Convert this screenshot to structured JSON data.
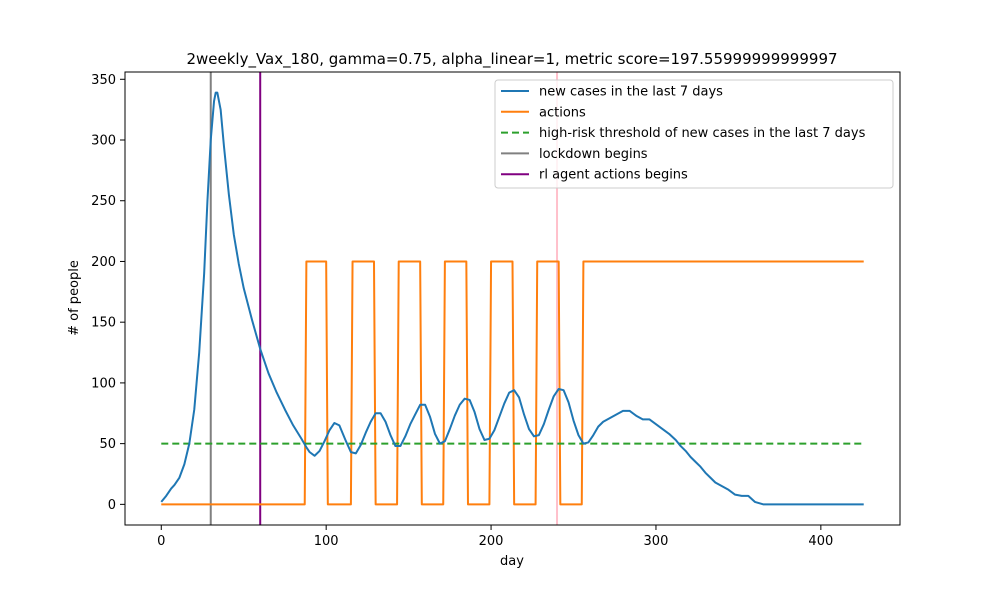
{
  "chart_data": {
    "type": "line",
    "title": "2weekly_Vax_180, gamma=0.75, alpha_linear=1, metric score=197.55999999999997",
    "xlabel": "day",
    "ylabel": "# of people",
    "xlim": [
      -22,
      448
    ],
    "ylim": [
      -17,
      356
    ],
    "xticks": [
      0,
      100,
      200,
      300,
      400
    ],
    "yticks": [
      0,
      50,
      100,
      150,
      200,
      250,
      300,
      350
    ],
    "grid": false,
    "legend_position": "upper-right",
    "series": [
      {
        "name": "new cases in the last 7 days",
        "color": "#1f77b4",
        "style": "solid",
        "x": [
          0,
          3,
          6,
          8,
          11,
          14,
          17,
          20,
          23,
          26,
          28,
          30,
          32,
          33,
          34,
          36,
          38,
          41,
          44,
          47,
          50,
          55,
          60,
          65,
          70,
          75,
          80,
          85,
          88,
          90,
          93,
          96,
          99,
          102,
          105,
          108,
          112,
          115,
          118,
          121,
          124,
          127,
          130,
          133,
          136,
          139,
          142,
          145,
          148,
          151,
          154,
          157,
          160,
          163,
          166,
          169,
          172,
          175,
          178,
          181,
          184,
          187,
          190,
          193,
          196,
          199,
          202,
          205,
          208,
          211,
          214,
          217,
          220,
          223,
          226,
          229,
          232,
          235,
          238,
          241,
          244,
          247,
          250,
          253,
          256,
          259,
          262,
          265,
          268,
          272,
          276,
          280,
          284,
          288,
          292,
          296,
          300,
          304,
          308,
          312,
          315,
          318,
          321,
          324,
          327,
          330,
          333,
          336,
          340,
          344,
          348,
          352,
          356,
          360,
          365,
          370,
          380,
          390,
          400,
          410,
          420,
          426
        ],
        "values": [
          2,
          7,
          13,
          16,
          22,
          33,
          50,
          78,
          125,
          190,
          250,
          300,
          332,
          339,
          339,
          325,
          295,
          255,
          222,
          198,
          178,
          152,
          128,
          108,
          92,
          78,
          65,
          54,
          47,
          43,
          40,
          44,
          52,
          61,
          67,
          65,
          52,
          43,
          42,
          49,
          59,
          68,
          75,
          75,
          68,
          57,
          48,
          48,
          56,
          66,
          74,
          82,
          82,
          72,
          58,
          50,
          52,
          62,
          73,
          82,
          87,
          86,
          76,
          62,
          53,
          54,
          61,
          72,
          83,
          92,
          94,
          88,
          74,
          62,
          56,
          57,
          66,
          78,
          89,
          95,
          94,
          84,
          69,
          57,
          50,
          51,
          57,
          64,
          68,
          71,
          74,
          77,
          77,
          73,
          70,
          70,
          66,
          62,
          58,
          53,
          48,
          44,
          39,
          35,
          31,
          26,
          22,
          18,
          15,
          12,
          8,
          7,
          7,
          2,
          0,
          0,
          0,
          0,
          0,
          0,
          0,
          0
        ]
      },
      {
        "name": "actions",
        "color": "#ff7f0e",
        "style": "solid",
        "x": [
          0,
          87,
          88,
          100,
          101,
          115,
          116,
          129,
          130,
          143,
          144,
          157,
          158,
          171,
          172,
          185,
          186,
          199,
          200,
          213,
          214,
          227,
          228,
          241,
          242,
          255,
          256,
          426
        ],
        "values": [
          0,
          0,
          200,
          200,
          0,
          0,
          200,
          200,
          0,
          0,
          200,
          200,
          0,
          0,
          200,
          200,
          0,
          0,
          200,
          200,
          0,
          0,
          200,
          200,
          0,
          0,
          200,
          200
        ]
      },
      {
        "name": "high-risk threshold of new cases in the last 7 days",
        "color": "#2ca02c",
        "style": "dashed",
        "x": [
          0,
          426
        ],
        "values": [
          50,
          50
        ]
      }
    ],
    "vlines": [
      {
        "name": "lockdown begins",
        "x": 30,
        "color": "#808080"
      },
      {
        "name": "rl agent actions begins",
        "x": 60,
        "color": "#800080"
      },
      {
        "name": "",
        "x": 240,
        "color": "#ffc0cb"
      }
    ]
  }
}
